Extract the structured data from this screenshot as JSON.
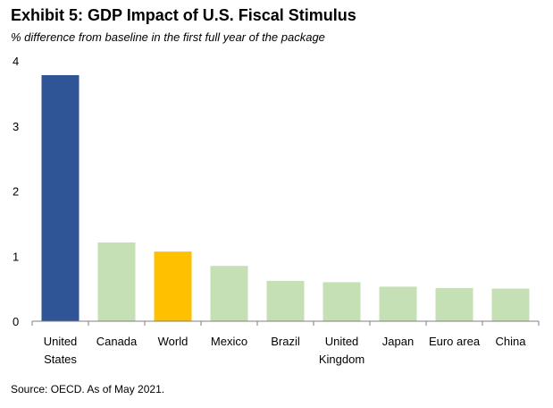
{
  "chart_data": {
    "type": "bar",
    "title": "Exhibit 5: GDP Impact of U.S. Fiscal Stimulus",
    "subtitle": "% difference from baseline in the first full year of the package",
    "source": "Source: OECD. As of May 2021.",
    "xlabel": "",
    "ylabel": "",
    "ylim": [
      0,
      4
    ],
    "yticks": [
      0,
      1,
      2,
      3,
      4
    ],
    "grid": false,
    "legend": "none",
    "categories": [
      [
        "United",
        "States"
      ],
      [
        "Canada"
      ],
      [
        "World"
      ],
      [
        "Mexico"
      ],
      [
        "Brazil"
      ],
      [
        "United",
        "Kingdom"
      ],
      [
        "Japan"
      ],
      [
        "Euro area"
      ],
      [
        "China"
      ]
    ],
    "values": [
      3.78,
      1.21,
      1.07,
      0.85,
      0.62,
      0.6,
      0.53,
      0.51,
      0.5
    ],
    "colors": [
      "#2f5597",
      "#c5e0b4",
      "#ffc000",
      "#c5e0b4",
      "#c5e0b4",
      "#c5e0b4",
      "#c5e0b4",
      "#c5e0b4",
      "#c5e0b4"
    ],
    "axis_color": "#7f7f7f"
  }
}
